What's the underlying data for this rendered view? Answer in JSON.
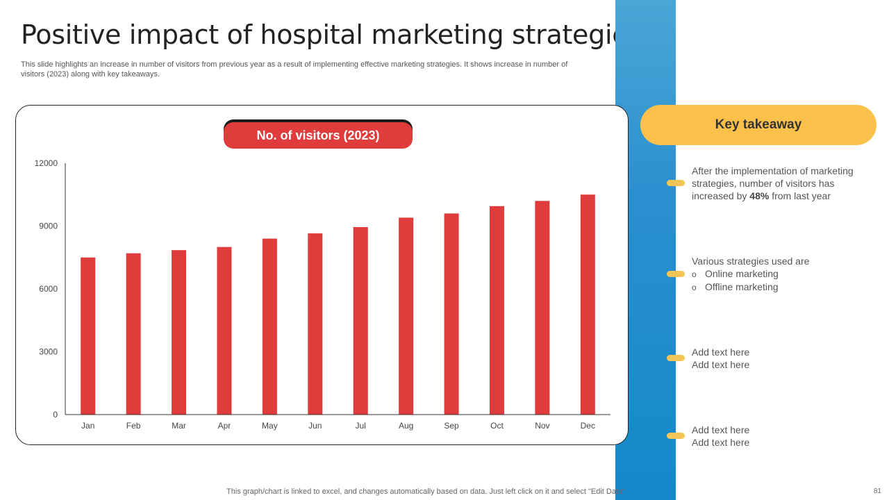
{
  "slide": {
    "title": "Positive impact of hospital marketing strategies",
    "subtitle": "This slide highlights an increase in number of visitors from previous year as a result of implementing effective marketing strategies. It shows increase in number of visitors (2023) along with key takeaways.",
    "footer": "This graph/chart is linked to excel, and changes automatically based on data. Just left click on it and select \"Edit Data\"",
    "page_number": "81"
  },
  "chart_data": {
    "type": "bar",
    "title": "No. of visitors (2023)",
    "categories": [
      "Jan",
      "Feb",
      "Mar",
      "Apr",
      "May",
      "Jun",
      "Jul",
      "Aug",
      "Sep",
      "Oct",
      "Nov",
      "Dec"
    ],
    "values": [
      7500,
      7700,
      7850,
      8000,
      8400,
      8650,
      8950,
      9400,
      9600,
      9950,
      10200,
      10500
    ],
    "ylim": [
      0,
      12000
    ],
    "yticks": [
      "0",
      "3000",
      "6000",
      "9000",
      "12000"
    ],
    "bar_color": "#e03c3c",
    "grid": false,
    "legend": "none"
  },
  "takeaways": {
    "header": "Key takeaway",
    "item1": {
      "line1": "After the implementation of marketing",
      "line2": "strategies, number of visitors has",
      "line3_pre": "increased by ",
      "line3_bold": "48%",
      "line3_post": " from last year"
    },
    "item2": {
      "line1": "Various strategies used are",
      "bullet_glyph": "o",
      "bullet1": "Online marketing",
      "bullet2": "Offline marketing"
    },
    "item3": {
      "line1": "Add text here",
      "line2": "Add text here"
    },
    "item4": {
      "line1": "Add text here",
      "line2": "Add text here"
    }
  },
  "colors": {
    "accent_red": "#e03c3c",
    "accent_yellow": "#fbc14a",
    "band_blue": "#1389c9"
  }
}
